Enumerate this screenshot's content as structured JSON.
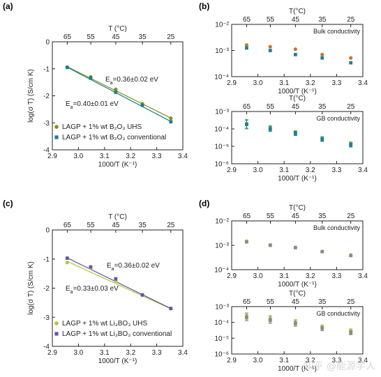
{
  "colors": {
    "olive": "#8b8b1e",
    "teal": "#13838f",
    "lime": "#a8c83a",
    "purple": "#6a52a8",
    "orange": "#c07a2a",
    "blueTeal": "#1d7f9a",
    "green": "#7db82c",
    "gray": "#8a8a8a",
    "axis": "#222222"
  },
  "watermark": "知乎 @能源学人",
  "chart_data": [
    {
      "id": "a",
      "panel_label": "(a)",
      "type": "scatter",
      "top_axis_label": "T (°C)",
      "top_ticks": [
        "65",
        "55",
        "45",
        "35",
        "25"
      ],
      "top_ticks_c": [
        65,
        55,
        45,
        35,
        25
      ],
      "xlabel": "1000/T (K⁻¹)",
      "ylabel": "log(σ T) (S/cm K)",
      "xlim": [
        2.9,
        3.4
      ],
      "ylim": [
        -4,
        0
      ],
      "xticks": [
        "2.9",
        "3.0",
        "3.1",
        "3.2",
        "3.3",
        "3.4"
      ],
      "yticks": [
        "-4",
        "-3",
        "-2",
        "-1",
        "0"
      ],
      "series": [
        {
          "name": "LAGP + 1% wt B₂O₃ UHS",
          "color": "olive",
          "x": [
            2.957,
            3.047,
            3.143,
            3.245,
            3.354
          ],
          "y": [
            -0.94,
            -1.3,
            -1.76,
            -2.3,
            -2.83
          ],
          "fit": [
            [
              2.957,
              -0.92
            ],
            [
              3.354,
              -2.82
            ]
          ]
        },
        {
          "name": "LAGP + 1% wt B₂O₃ conventional",
          "color": "teal",
          "x": [
            2.957,
            3.047,
            3.143,
            3.245,
            3.354
          ],
          "y": [
            -0.95,
            -1.35,
            -1.87,
            -2.35,
            -2.96
          ],
          "fit": [
            [
              2.957,
              -0.94
            ],
            [
              3.354,
              -2.95
            ]
          ]
        }
      ],
      "annotations": [
        {
          "text": "Ea=0.36±0.02 eV",
          "color": "olive",
          "x": 3.16,
          "y": -1.28
        },
        {
          "text": "Ea=0.40±0.01 eV",
          "color": "teal",
          "x": 3.01,
          "y": -2.08
        }
      ]
    },
    {
      "id": "b-bulk",
      "panel_label": "(b)",
      "type": "scatter",
      "title": "Bulk conductivity",
      "top_axis_label": "T(°C)",
      "top_ticks": [
        "65",
        "55",
        "45",
        "35",
        "25"
      ],
      "top_ticks_c": [
        65,
        55,
        45,
        35,
        25
      ],
      "xlabel": "1000/T (K⁻¹)",
      "xlim": [
        2.9,
        3.4
      ],
      "ylim_log10": [
        -4,
        -2
      ],
      "xticks": [
        "2.9",
        "3.0",
        "3.1",
        "3.2",
        "3.3",
        "3.4"
      ],
      "yticks": [
        "10⁻⁴",
        "10⁻³",
        "10⁻²"
      ],
      "series": [
        {
          "color": "orange",
          "x": [
            2.957,
            3.047,
            3.143,
            3.245,
            3.354
          ],
          "y": [
            0.00162,
            0.0014,
            0.00112,
            0.0007,
            0.00052
          ]
        },
        {
          "color": "blueTeal",
          "x": [
            2.957,
            3.047,
            3.143,
            3.245,
            3.354
          ],
          "y": [
            0.00125,
            0.001,
            0.0007,
            0.00052,
            0.00034
          ]
        }
      ]
    },
    {
      "id": "b-gb",
      "type": "scatter",
      "title": "GB conductivity",
      "top_axis_label": "T(°C)",
      "top_ticks": [
        "65",
        "55",
        "45",
        "35",
        "25"
      ],
      "top_ticks_c": [
        65,
        55,
        45,
        35,
        25
      ],
      "xlabel": "1000/T (K⁻¹)",
      "xlim": [
        2.9,
        3.4
      ],
      "ylim_log10": [
        -6,
        -3
      ],
      "xticks": [
        "2.9",
        "3.0",
        "3.1",
        "3.2",
        "3.3",
        "3.4"
      ],
      "yticks": [
        "10⁻⁶",
        "10⁻⁵",
        "10⁻⁴",
        "10⁻³"
      ],
      "series": [
        {
          "color": "green",
          "x": [
            2.957,
            3.047,
            3.143,
            3.245,
            3.354
          ],
          "y": [
            0.0002,
            0.00011,
            6.2e-05,
            2.8e-05,
            1.4e-05
          ],
          "err_log": [
            0.25,
            0.15,
            0.12,
            0.12,
            0.12
          ]
        },
        {
          "color": "blueTeal",
          "x": [
            2.957,
            3.047,
            3.143,
            3.245,
            3.354
          ],
          "y": [
            0.00018,
            0.0001,
            5.5e-05,
            2.5e-05,
            1.2e-05
          ],
          "err_log": [
            0.25,
            0.15,
            0.12,
            0.12,
            0.12
          ]
        }
      ]
    },
    {
      "id": "c",
      "panel_label": "(c)",
      "type": "scatter",
      "top_axis_label": "T (°C)",
      "top_ticks": [
        "65",
        "55",
        "45",
        "35",
        "25"
      ],
      "top_ticks_c": [
        65,
        55,
        45,
        35,
        25
      ],
      "xlabel": "1000/T (K⁻¹)",
      "ylabel": "log(σ T) (S/cm K)",
      "xlim": [
        2.9,
        3.4
      ],
      "ylim": [
        -4,
        0
      ],
      "xticks": [
        "2.9",
        "3.0",
        "3.1",
        "3.2",
        "3.3",
        "3.4"
      ],
      "yticks": [
        "-4",
        "-3",
        "-2",
        "-1",
        "0"
      ],
      "series": [
        {
          "name": "LAGP + 1% wt Li₃BO₃ UHS",
          "color": "lime",
          "x": [
            2.957,
            3.047,
            3.143,
            3.245,
            3.354
          ],
          "y": [
            -1.12,
            -1.3,
            -1.75,
            -2.25,
            -2.7
          ],
          "fit": [
            [
              2.957,
              -1.08
            ],
            [
              3.354,
              -2.71
            ]
          ]
        },
        {
          "name": "LAGP + 1% wt Li₃BO₃ conventional",
          "color": "purple",
          "x": [
            2.957,
            3.047,
            3.143,
            3.245,
            3.354
          ],
          "y": [
            -0.97,
            -1.27,
            -1.68,
            -2.23,
            -2.7
          ],
          "fit": [
            [
              2.957,
              -0.96
            ],
            [
              3.354,
              -2.7
            ]
          ]
        }
      ],
      "annotations": [
        {
          "text": "Ea=0.36±0.02 eV",
          "color": "purple",
          "x": 3.16,
          "y": -1.25
        },
        {
          "text": "Ea=0.33±0.03 eV",
          "color": "lime",
          "x": 2.995,
          "y": -2.05
        }
      ]
    },
    {
      "id": "d-bulk",
      "panel_label": "(d)",
      "type": "scatter",
      "title": "Bulk conductivity",
      "top_axis_label": "T(°C)",
      "top_ticks": [
        "65",
        "55",
        "45",
        "35",
        "25"
      ],
      "top_ticks_c": [
        65,
        55,
        45,
        35,
        25
      ],
      "xlabel": "1000/T (K⁻¹)",
      "xlim": [
        2.9,
        3.4
      ],
      "ylim_log10": [
        -4,
        -2
      ],
      "xticks": [
        "2.9",
        "3.0",
        "3.1",
        "3.2",
        "3.3",
        "3.4"
      ],
      "yticks": [
        "10⁻⁴",
        "10⁻³",
        "10⁻²"
      ],
      "series": [
        {
          "color": "lime",
          "x": [
            2.957,
            3.047,
            3.143,
            3.245,
            3.354
          ],
          "y": [
            0.00148,
            0.00105,
            0.00082,
            0.00056,
            0.0004
          ]
        },
        {
          "color": "gray",
          "x": [
            2.957,
            3.047,
            3.143,
            3.245,
            3.354
          ],
          "y": [
            0.00138,
            0.001,
            0.0008,
            0.00055,
            0.00038
          ]
        }
      ]
    },
    {
      "id": "d-gb",
      "type": "scatter",
      "title": "GB conductivity",
      "top_axis_label": "T(°C)",
      "top_ticks": [
        "65",
        "55",
        "45",
        "35",
        "25"
      ],
      "top_ticks_c": [
        65,
        55,
        45,
        35,
        25
      ],
      "xlabel": "1000/T (K⁻¹)",
      "xlim": [
        2.9,
        3.4
      ],
      "ylim_log10": [
        -6,
        -3
      ],
      "xticks": [
        "2.9",
        "3.0",
        "3.1",
        "3.2",
        "3.3",
        "3.4"
      ],
      "yticks": [
        "10⁻⁶",
        "10⁻⁵",
        "10⁻⁴",
        "10⁻³"
      ],
      "series": [
        {
          "color": "lime",
          "x": [
            2.957,
            3.047,
            3.143,
            3.245,
            3.354
          ],
          "y": [
            0.00025,
            0.00017,
            0.0001,
            5e-05,
            3e-05
          ],
          "err_log": [
            0.22,
            0.22,
            0.18,
            0.15,
            0.12
          ]
        },
        {
          "color": "gray",
          "x": [
            2.957,
            3.047,
            3.143,
            3.245,
            3.354
          ],
          "y": [
            0.00021,
            0.00014,
            8.5e-05,
            4.2e-05,
            2.2e-05
          ],
          "err_log": [
            0.22,
            0.22,
            0.18,
            0.15,
            0.12
          ]
        }
      ]
    }
  ]
}
